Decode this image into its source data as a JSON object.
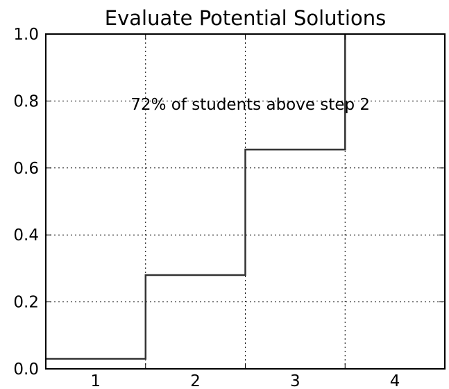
{
  "chart_data": {
    "type": "line",
    "style": "step",
    "title": "Evaluate Potential Solutions",
    "xlabel": "",
    "ylabel": "",
    "categories": [
      "1",
      "2",
      "3",
      "4"
    ],
    "values": [
      0.03,
      0.28,
      0.655,
      1.0
    ],
    "xlim": [
      0.5,
      4.5
    ],
    "ylim": [
      0.0,
      1.0
    ],
    "y_ticks": [
      "0.0",
      "0.2",
      "0.4",
      "0.6",
      "0.8",
      "1.0"
    ],
    "y_tick_values": [
      0.0,
      0.2,
      0.4,
      0.6,
      0.8,
      1.0
    ],
    "grid": true,
    "line_color": "#333333",
    "annotation": {
      "text": "72% of students above step 2",
      "x": 2.0,
      "y": 0.77
    }
  }
}
